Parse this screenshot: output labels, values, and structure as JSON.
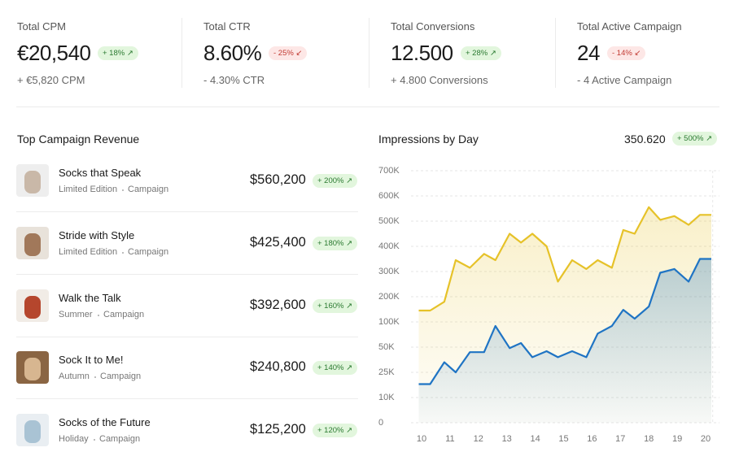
{
  "kpis": [
    {
      "label": "Total CPM",
      "value": "€20,540",
      "change": "+ 18% ↗",
      "tone": "positive",
      "sub": "+ €5,820 CPM"
    },
    {
      "label": "Total CTR",
      "value": "8.60%",
      "change": "- 25% ↙",
      "tone": "negative",
      "sub": "- 4.30% CTR"
    },
    {
      "label": "Total Conversions",
      "value": "12.500",
      "change": "+ 28% ↗",
      "tone": "positive",
      "sub": "+ 4.800 Conversions"
    },
    {
      "label": "Total Active Campaign",
      "value": "24",
      "change": "- 14% ↙",
      "tone": "negative",
      "sub": "- 4 Active Campaign"
    }
  ],
  "campaigns": {
    "title": "Top Campaign Revenue",
    "rows": [
      {
        "name": "Socks that Speak",
        "tag": "Limited Edition",
        "kind": "Campaign",
        "revenue": "$560,200",
        "change": "+ 200% ↗"
      },
      {
        "name": "Stride with Style",
        "tag": "Limited Edition",
        "kind": "Campaign",
        "revenue": "$425,400",
        "change": "+ 180% ↗"
      },
      {
        "name": "Walk the Talk",
        "tag": "Summer",
        "kind": "Campaign",
        "revenue": "$392,600",
        "change": "+ 160% ↗"
      },
      {
        "name": "Sock It to Me!",
        "tag": "Autumn",
        "kind": "Campaign",
        "revenue": "$240,800",
        "change": "+ 140% ↗"
      },
      {
        "name": "Socks of the Future",
        "tag": "Holiday",
        "kind": "Campaign",
        "revenue": "$125,200",
        "change": "+ 120% ↗"
      }
    ]
  },
  "chart_data": {
    "type": "line",
    "title": "Impressions by Day",
    "summary_value": "350.620",
    "summary_change": "+ 500% ↗",
    "x": [
      9.9,
      10.3,
      10.8,
      11.2,
      11.7,
      12.2,
      12.6,
      13.1,
      13.5,
      13.9,
      14.4,
      14.8,
      15.3,
      15.8,
      16.2,
      16.7,
      17.1,
      17.5,
      18.0,
      18.4,
      18.9,
      19.4,
      19.8,
      20.2
    ],
    "xlim": [
      9.85,
      20.25
    ],
    "xticks": [
      10,
      11,
      12,
      13,
      14,
      15,
      16,
      17,
      18,
      19,
      20
    ],
    "ylim": [
      0,
      700000
    ],
    "yticks": [
      0,
      {
        "value": 10000,
        "label": "10K"
      },
      {
        "value": 25000,
        "label": "25K"
      },
      {
        "value": 50000,
        "label": "50K"
      },
      {
        "value": 100000,
        "label": "100K"
      },
      {
        "value": 200000,
        "label": "200K"
      },
      {
        "value": 300000,
        "label": "300K"
      },
      {
        "value": 400000,
        "label": "400K"
      },
      {
        "value": 500000,
        "label": "500K"
      },
      {
        "value": 600000,
        "label": "600K"
      },
      {
        "value": 700000,
        "label": "700K"
      }
    ],
    "grid": true,
    "series": [
      {
        "color": "#e6c229",
        "values": [
          145000,
          145000,
          180000,
          345000,
          315000,
          370000,
          345000,
          450000,
          415000,
          450000,
          400000,
          260000,
          345000,
          310000,
          345000,
          315000,
          465000,
          450000,
          555000,
          505000,
          520000,
          485000,
          525000,
          525000
        ]
      },
      {
        "color": "#1f74c4",
        "values": [
          18000,
          18000,
          35000,
          25000,
          45000,
          45000,
          92000,
          49000,
          58000,
          40000,
          46000,
          40000,
          46000,
          40000,
          77000,
          92000,
          148000,
          113000,
          161000,
          295000,
          310000,
          260000,
          350000,
          350000
        ]
      }
    ]
  }
}
